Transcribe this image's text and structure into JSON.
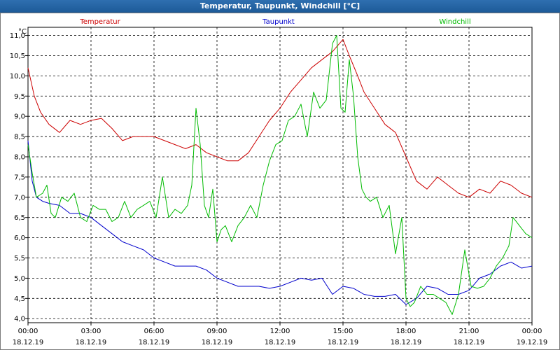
{
  "window": {
    "title": "Temperatur, Taupunkt, Windchill [°C]"
  },
  "chart_data": {
    "type": "line",
    "title": "Temperatur, Taupunkt, Windchill [°C]",
    "ylabel": "°C",
    "ylim": [
      3.9,
      11.2
    ],
    "xlim": [
      0,
      24
    ],
    "grid": true,
    "legend_position": "top",
    "y_ticks": [
      "4,0",
      "4,5",
      "5,0",
      "5,5",
      "6,0",
      "6,5",
      "7,0",
      "7,5",
      "8,0",
      "8,5",
      "9,0",
      "9,5",
      "10,0",
      "10,5",
      "11,0"
    ],
    "y_tick_values": [
      4.0,
      4.5,
      5.0,
      5.5,
      6.0,
      6.5,
      7.0,
      7.5,
      8.0,
      8.5,
      9.0,
      9.5,
      10.0,
      10.5,
      11.0
    ],
    "x_tick_values": [
      0,
      3,
      6,
      9,
      12,
      15,
      18,
      21,
      24
    ],
    "x_ticks": [
      {
        "time": "00:00",
        "date": "18.12.19"
      },
      {
        "time": "03:00",
        "date": "18.12.19"
      },
      {
        "time": "06:00",
        "date": "18.12.19"
      },
      {
        "time": "09:00",
        "date": "18.12.19"
      },
      {
        "time": "12:00",
        "date": "18.12.19"
      },
      {
        "time": "15:00",
        "date": "18.12.19"
      },
      {
        "time": "18:00",
        "date": "18.12.19"
      },
      {
        "time": "21:00",
        "date": "18.12.19"
      },
      {
        "time": "00:00",
        "date": "19.12.19"
      }
    ],
    "series": [
      {
        "name": "Temperatur",
        "color": "#cc0000",
        "x": [
          0,
          0.3,
          0.6,
          1,
          1.5,
          2,
          2.5,
          3,
          3.5,
          4,
          4.5,
          5,
          5.5,
          6,
          6.5,
          7,
          7.5,
          8,
          8.5,
          9,
          9.5,
          10,
          10.5,
          11,
          11.5,
          12,
          12.5,
          13,
          13.5,
          14,
          14.5,
          15,
          15.3,
          15.7,
          16,
          16.5,
          17,
          17.5,
          18,
          18.5,
          19,
          19.5,
          20,
          20.5,
          21,
          21.5,
          22,
          22.5,
          23,
          23.5,
          24
        ],
        "values": [
          10.2,
          9.5,
          9.1,
          8.8,
          8.6,
          8.9,
          8.8,
          8.9,
          8.95,
          8.7,
          8.4,
          8.5,
          8.5,
          8.5,
          8.4,
          8.3,
          8.2,
          8.3,
          8.1,
          8.0,
          7.9,
          7.9,
          8.1,
          8.5,
          8.9,
          9.2,
          9.6,
          9.9,
          10.2,
          10.4,
          10.6,
          10.9,
          10.5,
          10.0,
          9.6,
          9.2,
          8.8,
          8.6,
          8.0,
          7.4,
          7.2,
          7.5,
          7.3,
          7.1,
          7.0,
          7.2,
          7.1,
          7.4,
          7.3,
          7.1,
          7.0
        ]
      },
      {
        "name": "Taupunkt",
        "color": "#0000cc",
        "x": [
          0,
          0.2,
          0.4,
          0.7,
          1,
          1.5,
          2,
          2.5,
          3,
          3.5,
          4,
          4.5,
          5,
          5.5,
          6,
          6.5,
          7,
          7.5,
          8,
          8.5,
          9,
          9.5,
          10,
          10.5,
          11,
          11.5,
          12,
          12.5,
          13,
          13.5,
          14,
          14.5,
          15,
          15.5,
          16,
          16.5,
          17,
          17.5,
          18,
          18.5,
          19,
          19.5,
          20,
          20.5,
          21,
          21.5,
          22,
          22.5,
          23,
          23.5,
          24
        ],
        "values": [
          8.4,
          7.4,
          7.0,
          6.9,
          6.85,
          6.8,
          6.6,
          6.6,
          6.5,
          6.3,
          6.1,
          5.9,
          5.8,
          5.7,
          5.5,
          5.4,
          5.3,
          5.3,
          5.3,
          5.2,
          5.0,
          4.9,
          4.8,
          4.8,
          4.8,
          4.75,
          4.8,
          4.9,
          5.0,
          4.95,
          5.0,
          4.6,
          4.8,
          4.75,
          4.6,
          4.55,
          4.55,
          4.6,
          4.35,
          4.5,
          4.8,
          4.75,
          4.6,
          4.6,
          4.7,
          5.0,
          5.1,
          5.3,
          5.4,
          5.25,
          5.3
        ]
      },
      {
        "name": "Windchill",
        "color": "#00bb00",
        "x": [
          0,
          0.2,
          0.4,
          0.7,
          0.9,
          1.1,
          1.3,
          1.6,
          1.9,
          2.2,
          2.5,
          2.8,
          3.1,
          3.4,
          3.7,
          4.0,
          4.3,
          4.6,
          4.9,
          5.2,
          5.5,
          5.8,
          6.1,
          6.4,
          6.7,
          7.0,
          7.3,
          7.6,
          7.8,
          8.0,
          8.2,
          8.4,
          8.6,
          8.8,
          9.0,
          9.2,
          9.4,
          9.7,
          10.0,
          10.3,
          10.6,
          10.9,
          11.2,
          11.5,
          11.8,
          12.1,
          12.4,
          12.7,
          13.0,
          13.3,
          13.6,
          13.9,
          14.2,
          14.5,
          14.7,
          14.9,
          15.1,
          15.3,
          15.5,
          15.7,
          15.9,
          16.1,
          16.3,
          16.6,
          16.9,
          17.2,
          17.5,
          17.8,
          18.0,
          18.2,
          18.4,
          18.7,
          19.0,
          19.3,
          19.6,
          19.9,
          20.2,
          20.5,
          20.8,
          21.1,
          21.4,
          21.7,
          22.0,
          22.3,
          22.6,
          22.9,
          23.1,
          23.4,
          23.7,
          24
        ],
        "values": [
          8.3,
          7.6,
          7.0,
          7.1,
          7.3,
          6.6,
          6.5,
          7.0,
          6.9,
          7.1,
          6.5,
          6.4,
          6.8,
          6.7,
          6.7,
          6.4,
          6.5,
          6.9,
          6.5,
          6.7,
          6.8,
          6.9,
          6.5,
          7.5,
          6.5,
          6.7,
          6.6,
          6.8,
          7.3,
          9.2,
          8.3,
          6.8,
          6.5,
          7.2,
          5.9,
          6.2,
          6.3,
          5.9,
          6.3,
          6.5,
          6.8,
          6.5,
          7.3,
          7.9,
          8.3,
          8.4,
          8.9,
          9.0,
          9.3,
          8.5,
          9.6,
          9.2,
          9.4,
          10.8,
          11.0,
          9.2,
          9.1,
          10.4,
          9.5,
          8.0,
          7.2,
          7.0,
          6.9,
          7.0,
          6.5,
          6.8,
          5.6,
          6.5,
          4.5,
          4.3,
          4.4,
          4.8,
          4.6,
          4.6,
          4.5,
          4.4,
          4.1,
          4.6,
          5.7,
          4.8,
          4.75,
          4.8,
          5.0,
          5.3,
          5.5,
          5.8,
          6.5,
          6.3,
          6.1,
          6.0
        ]
      }
    ]
  }
}
